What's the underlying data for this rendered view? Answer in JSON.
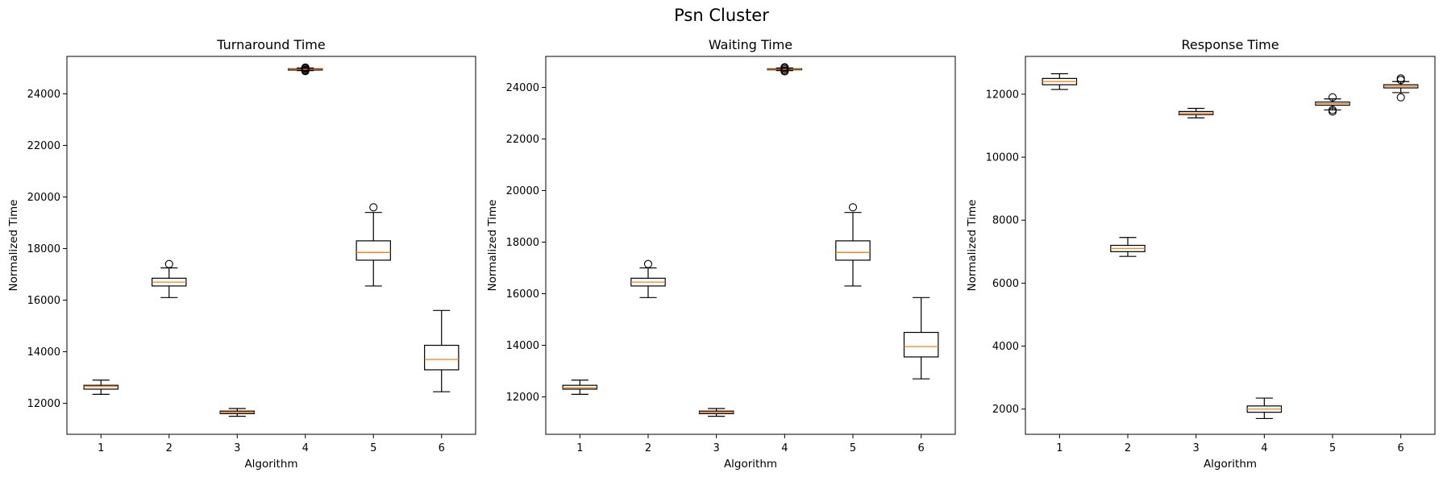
{
  "suptitle": "Psn Cluster",
  "colors": {
    "box": "#000000",
    "median": "#ff7f0e",
    "background": "#ffffff"
  },
  "chart_data": [
    {
      "type": "box",
      "title": "Turnaround Time",
      "xlabel": "Algorithm",
      "ylabel": "Normalized Time",
      "categories": [
        "1",
        "2",
        "3",
        "4",
        "5",
        "6"
      ],
      "ylim": [
        10800,
        25450
      ],
      "yticks": [
        12000,
        14000,
        16000,
        18000,
        20000,
        22000,
        24000
      ],
      "boxes": [
        {
          "whislo": 12350,
          "q1": 12550,
          "med": 12650,
          "q3": 12700,
          "whishi": 12900,
          "fliers": []
        },
        {
          "whislo": 16100,
          "q1": 16550,
          "med": 16700,
          "q3": 16850,
          "whishi": 17250,
          "fliers": [
            17400
          ]
        },
        {
          "whislo": 11500,
          "q1": 11600,
          "med": 11650,
          "q3": 11700,
          "whishi": 11800,
          "fliers": []
        },
        {
          "whislo": 24900,
          "q1": 24920,
          "med": 24950,
          "q3": 24970,
          "whishi": 25000,
          "fliers": [
            24880,
            24900,
            24930,
            24970,
            25000,
            25020
          ]
        },
        {
          "whislo": 16550,
          "q1": 17550,
          "med": 17850,
          "q3": 18300,
          "whishi": 19400,
          "fliers": [
            19600
          ]
        },
        {
          "whislo": 12450,
          "q1": 13300,
          "med": 13700,
          "q3": 14250,
          "whishi": 15600,
          "fliers": []
        }
      ]
    },
    {
      "type": "box",
      "title": "Waiting Time",
      "xlabel": "Algorithm",
      "ylabel": "Normalized Time",
      "categories": [
        "1",
        "2",
        "3",
        "4",
        "5",
        "6"
      ],
      "ylim": [
        10550,
        25200
      ],
      "yticks": [
        12000,
        14000,
        16000,
        18000,
        20000,
        22000,
        24000
      ],
      "boxes": [
        {
          "whislo": 12100,
          "q1": 12300,
          "med": 12350,
          "q3": 12450,
          "whishi": 12650,
          "fliers": []
        },
        {
          "whislo": 15850,
          "q1": 16300,
          "med": 16450,
          "q3": 16600,
          "whishi": 17000,
          "fliers": [
            17150
          ]
        },
        {
          "whislo": 11250,
          "q1": 11350,
          "med": 11400,
          "q3": 11450,
          "whishi": 11550,
          "fliers": []
        },
        {
          "whislo": 24650,
          "q1": 24680,
          "med": 24700,
          "q3": 24720,
          "whishi": 24750,
          "fliers": [
            24620,
            24650,
            24700,
            24750,
            24780
          ]
        },
        {
          "whislo": 16300,
          "q1": 17300,
          "med": 17600,
          "q3": 18050,
          "whishi": 19150,
          "fliers": [
            19350
          ]
        },
        {
          "whislo": 12700,
          "q1": 13550,
          "med": 13950,
          "q3": 14500,
          "whishi": 15850,
          "fliers": []
        }
      ]
    },
    {
      "type": "box",
      "title": "Response Time",
      "xlabel": "Algorithm",
      "ylabel": "Normalized Time",
      "categories": [
        "1",
        "2",
        "3",
        "4",
        "5",
        "6"
      ],
      "ylim": [
        1200,
        13200
      ],
      "yticks": [
        2000,
        4000,
        6000,
        8000,
        10000,
        12000
      ],
      "boxes": [
        {
          "whislo": 12150,
          "q1": 12300,
          "med": 12400,
          "q3": 12500,
          "whishi": 12650,
          "fliers": []
        },
        {
          "whislo": 6850,
          "q1": 7000,
          "med": 7100,
          "q3": 7200,
          "whishi": 7450,
          "fliers": []
        },
        {
          "whislo": 11250,
          "q1": 11350,
          "med": 11400,
          "q3": 11450,
          "whishi": 11550,
          "fliers": []
        },
        {
          "whislo": 1700,
          "q1": 1900,
          "med": 2000,
          "q3": 2100,
          "whishi": 2350,
          "fliers": []
        },
        {
          "whislo": 11500,
          "q1": 11650,
          "med": 11700,
          "q3": 11750,
          "whishi": 11850,
          "fliers": [
            11450,
            11500,
            11900
          ]
        },
        {
          "whislo": 12050,
          "q1": 12200,
          "med": 12250,
          "q3": 12300,
          "whishi": 12400,
          "fliers": [
            11900,
            12450,
            12500
          ]
        }
      ]
    }
  ]
}
